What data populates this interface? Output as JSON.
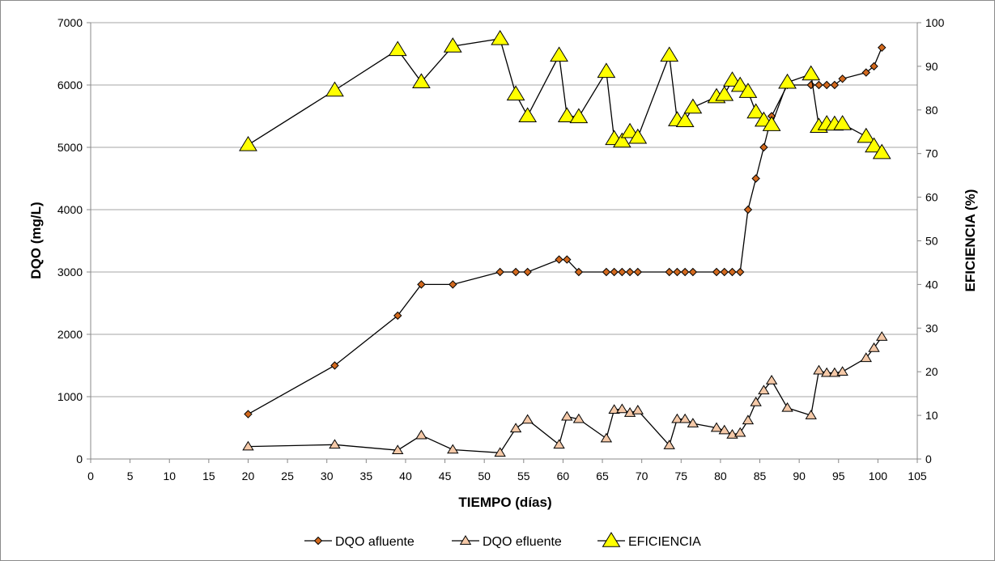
{
  "chart_data": {
    "type": "line",
    "title": "",
    "xlabel": "TIEMPO (días)",
    "ylabel": "DQO (mg/L)",
    "y2label": "EFICIENCIA (%)",
    "xlim": [
      0,
      105
    ],
    "ylim": [
      0,
      7000
    ],
    "y2lim": [
      0,
      100
    ],
    "x_ticks": [
      "0",
      "5",
      "10",
      "15",
      "20",
      "25",
      "30",
      "35",
      "40",
      "45",
      "50",
      "55",
      "60",
      "65",
      "70",
      "75",
      "80",
      "85",
      "90",
      "95",
      "100",
      "105"
    ],
    "y_ticks": [
      "0",
      "1000",
      "2000",
      "3000",
      "4000",
      "5000",
      "6000",
      "7000"
    ],
    "y2_ticks": [
      "0",
      "10",
      "20",
      "30",
      "40",
      "50",
      "60",
      "70",
      "80",
      "90",
      "100"
    ],
    "grid": true,
    "legend_position": "bottom",
    "colors": {
      "afluente": "#d2691e",
      "efluente": "#f5c9a8",
      "eficiencia": "#ffff00",
      "line": "#000000",
      "grid": "#a6a6a6"
    },
    "series": [
      {
        "name": "DQO afluente",
        "axis": "left",
        "marker": "diamond",
        "points": [
          [
            20,
            720
          ],
          [
            31,
            1500
          ],
          [
            39,
            2300
          ],
          [
            42,
            2800
          ],
          [
            46,
            2800
          ],
          [
            52,
            3000
          ],
          [
            54,
            3000
          ],
          [
            55.5,
            3000
          ],
          [
            59.5,
            3200
          ],
          [
            60.5,
            3200
          ],
          [
            62,
            3000
          ],
          [
            65.5,
            3000
          ],
          [
            66.5,
            3000
          ],
          [
            67.5,
            3000
          ],
          [
            68.5,
            3000
          ],
          [
            69.5,
            3000
          ],
          [
            73.5,
            3000
          ],
          [
            74.5,
            3000
          ],
          [
            75.5,
            3000
          ],
          [
            76.5,
            3000
          ],
          [
            79.5,
            3000
          ],
          [
            80.5,
            3000
          ],
          [
            81.5,
            3000
          ],
          [
            82.5,
            3000
          ],
          [
            83.5,
            4000
          ],
          [
            84.5,
            4500
          ],
          [
            85.5,
            5000
          ],
          [
            86.5,
            5500
          ],
          [
            88.5,
            6000
          ],
          [
            91.5,
            6000
          ],
          [
            92.5,
            6000
          ],
          [
            93.5,
            6000
          ],
          [
            94.5,
            6000
          ],
          [
            95.5,
            6100
          ],
          [
            98.5,
            6200
          ],
          [
            99.5,
            6300
          ],
          [
            100.5,
            6600
          ]
        ]
      },
      {
        "name": "DQO efluente",
        "axis": "left",
        "marker": "triangle",
        "points": [
          [
            20,
            200
          ],
          [
            31,
            230
          ],
          [
            39,
            140
          ],
          [
            42,
            380
          ],
          [
            46,
            150
          ],
          [
            52,
            100
          ],
          [
            54,
            490
          ],
          [
            55.5,
            630
          ],
          [
            59.5,
            230
          ],
          [
            60.5,
            680
          ],
          [
            62,
            640
          ],
          [
            65.5,
            330
          ],
          [
            66.5,
            790
          ],
          [
            67.5,
            800
          ],
          [
            68.5,
            740
          ],
          [
            69.5,
            780
          ],
          [
            73.5,
            220
          ],
          [
            74.5,
            640
          ],
          [
            75.5,
            640
          ],
          [
            76.5,
            570
          ],
          [
            79.5,
            500
          ],
          [
            80.5,
            460
          ],
          [
            81.5,
            390
          ],
          [
            82.5,
            420
          ],
          [
            83.5,
            620
          ],
          [
            84.5,
            910
          ],
          [
            85.5,
            1100
          ],
          [
            86.5,
            1260
          ],
          [
            88.5,
            820
          ],
          [
            91.5,
            700
          ],
          [
            92.5,
            1420
          ],
          [
            93.5,
            1380
          ],
          [
            94.5,
            1380
          ],
          [
            95.5,
            1400
          ],
          [
            98.5,
            1620
          ],
          [
            99.5,
            1780
          ],
          [
            100.5,
            1960
          ]
        ]
      },
      {
        "name": "EFICIENCIA",
        "axis": "right",
        "marker": "triangle",
        "points": [
          [
            20,
            72
          ],
          [
            31,
            84.5
          ],
          [
            39,
            93.8
          ],
          [
            42,
            86.4
          ],
          [
            46,
            94.6
          ],
          [
            52,
            96.3
          ],
          [
            54,
            83.6
          ],
          [
            55.5,
            78.6
          ],
          [
            59.5,
            92.5
          ],
          [
            60.5,
            78.6
          ],
          [
            62,
            78.4
          ],
          [
            65.5,
            88.8
          ],
          [
            66.5,
            73.4
          ],
          [
            67.5,
            72.8
          ],
          [
            68.5,
            75
          ],
          [
            69.5,
            73.7
          ],
          [
            73.5,
            92.5
          ],
          [
            74.5,
            77.7
          ],
          [
            75.5,
            77.5
          ],
          [
            76.5,
            80.6
          ],
          [
            79.5,
            83
          ],
          [
            80.5,
            83.5
          ],
          [
            81.5,
            86.8
          ],
          [
            82.5,
            85.6
          ],
          [
            83.5,
            84.2
          ],
          [
            84.5,
            79.5
          ],
          [
            85.5,
            77.6
          ],
          [
            86.5,
            76.6
          ],
          [
            88.5,
            86.3
          ],
          [
            91.5,
            88.2
          ],
          [
            92.5,
            76.2
          ],
          [
            93.5,
            76.8
          ],
          [
            94.5,
            76.7
          ],
          [
            95.5,
            76.8
          ],
          [
            98.5,
            73.9
          ],
          [
            99.5,
            71.7
          ],
          [
            100.5,
            70.2
          ]
        ]
      }
    ]
  }
}
